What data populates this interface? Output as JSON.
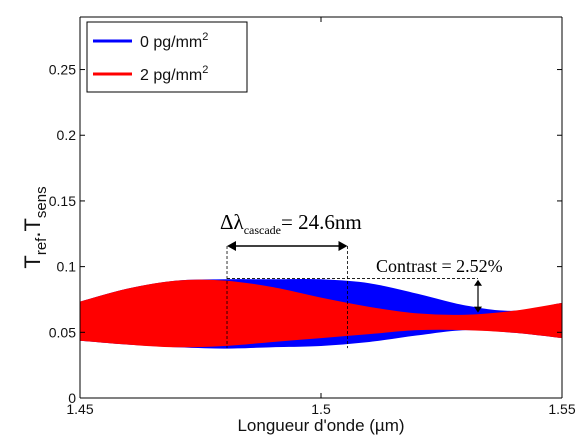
{
  "chart_data": {
    "type": "area",
    "title": "",
    "xlabel": "Longueur d'onde (µm)",
    "ylabel": {
      "base": "T",
      "sub1": "ref",
      "mid": ".T",
      "sub2": "sens"
    },
    "xlim": [
      1.45,
      1.55
    ],
    "ylim": [
      0,
      0.29
    ],
    "xticks": [
      1.45,
      1.5,
      1.55
    ],
    "xtick_labels": [
      "1.45",
      "1.5",
      "1.55"
    ],
    "yticks": [
      0,
      0.05,
      0.1,
      0.15,
      0.2,
      0.25
    ],
    "ytick_labels": [
      "0",
      "0.05",
      "0.1",
      "0.15",
      "0.2",
      "0.25"
    ],
    "grid": false,
    "legend": {
      "position": "top-left"
    },
    "series": [
      {
        "name": "0 pg/mm",
        "name_sup": "2",
        "color": "#0000ff",
        "x": [
          1.45,
          1.46,
          1.47,
          1.48,
          1.49,
          1.5,
          1.51,
          1.52,
          1.53,
          1.54,
          1.55
        ],
        "upper": [
          0.073,
          0.083,
          0.089,
          0.09,
          0.09,
          0.09,
          0.087,
          0.079,
          0.07,
          0.066,
          0.072
        ],
        "lower": [
          0.044,
          0.041,
          0.039,
          0.038,
          0.039,
          0.04,
          0.043,
          0.048,
          0.052,
          0.05,
          0.046
        ]
      },
      {
        "name": "2 pg/mm",
        "name_sup": "2",
        "color": "#ff0000",
        "x": [
          1.45,
          1.46,
          1.47,
          1.48,
          1.49,
          1.5,
          1.51,
          1.52,
          1.53,
          1.54,
          1.55
        ],
        "upper": [
          0.073,
          0.083,
          0.089,
          0.089,
          0.084,
          0.076,
          0.069,
          0.064,
          0.063,
          0.066,
          0.072
        ],
        "lower": [
          0.044,
          0.041,
          0.039,
          0.04,
          0.043,
          0.046,
          0.049,
          0.052,
          0.052,
          0.05,
          0.046
        ]
      }
    ],
    "annotations": [
      {
        "kind": "delta",
        "prefix": "Δλ",
        "sub": "cascade",
        "text": "= 24.6nm",
        "x_from": 1.4805,
        "x_to": 1.5055,
        "dashed_y_top": 0.091,
        "dashed_y_bottom": 0.038
      },
      {
        "kind": "contrast",
        "text": "Contrast = 2.52%",
        "x": 1.533,
        "y_top": 0.09,
        "y_bottom": 0.065
      }
    ]
  }
}
